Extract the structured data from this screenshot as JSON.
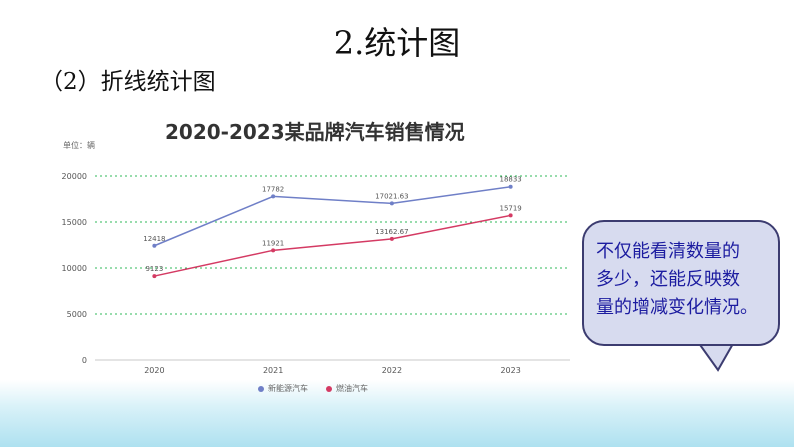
{
  "slide": {
    "title": "2.统计图",
    "section": "（2）折线统计图"
  },
  "callout": {
    "lines": [
      "不仅能看清数量的",
      "多少，还能反映数",
      "量的增减变化情况。"
    ]
  },
  "chart_data": {
    "type": "line",
    "title": "2020-2023某品牌汽车销售情况",
    "unit_label": "单位：辆",
    "categories": [
      "2020",
      "2021",
      "2022",
      "2023"
    ],
    "ylim": [
      0,
      20000
    ],
    "yticks": [
      "0",
      "5000",
      "10000",
      "15000",
      "20000"
    ],
    "grid": true,
    "legend_position": "bottom",
    "series": [
      {
        "name": "新能源汽车",
        "color": "#6f7fc7",
        "values": [
          12418,
          17782,
          17021.63,
          18833
        ],
        "labels": [
          "12418",
          "17782",
          "17021.63",
          "18833"
        ]
      },
      {
        "name": "燃油汽车",
        "color": "#d43a63",
        "values": [
          9123,
          11921,
          13162.67,
          15719
        ],
        "labels": [
          "9123",
          "11921",
          "13162.67",
          "15719"
        ]
      }
    ]
  }
}
